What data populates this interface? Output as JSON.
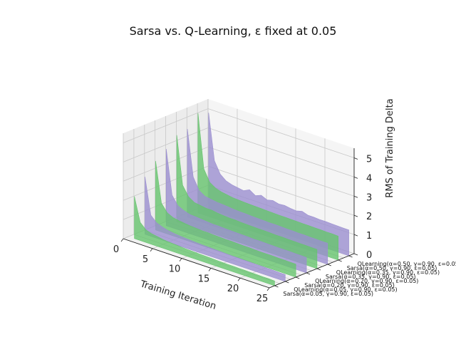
{
  "chart_data": {
    "type": "area",
    "title": "Sarsa vs. Q-Learning, ε fixed at 0.05",
    "xlabel": "Training Iteration",
    "zlabel": "RMS of Training Delta",
    "xlim": [
      0,
      25
    ],
    "zlim": [
      0,
      5.5
    ],
    "x_ticks": [
      "0",
      "5",
      "10",
      "15",
      "20",
      "25"
    ],
    "z_ticks": [
      "0",
      "1",
      "2",
      "3",
      "4",
      "5"
    ],
    "grid": true,
    "colors": {
      "Sarsa": "#66c46e",
      "QLearning": "#9b8fd0"
    },
    "x": [
      1,
      2,
      3,
      4,
      5,
      6,
      7,
      8,
      9,
      10,
      11,
      12,
      13,
      14,
      15,
      16,
      17,
      18,
      19,
      20,
      21,
      22,
      23,
      24,
      25
    ],
    "series": [
      {
        "name": "Sarsa(α=0.05, γ=0.90, ε=0.05)",
        "algo": "Sarsa",
        "values": [
          2.2,
          0.95,
          0.65,
          0.55,
          0.5,
          0.45,
          0.42,
          0.4,
          0.38,
          0.36,
          0.35,
          0.34,
          0.33,
          0.32,
          0.31,
          0.3,
          0.29,
          0.29,
          0.28,
          0.28,
          0.27,
          0.27,
          0.26,
          0.26,
          0.25
        ]
      },
      {
        "name": "QLearning(α=0.05, γ=0.90, ε=0.05)",
        "algo": "QLearning",
        "values": [
          3.0,
          1.1,
          0.8,
          0.68,
          0.6,
          0.55,
          0.52,
          0.5,
          0.48,
          0.46,
          0.45,
          0.44,
          0.43,
          0.42,
          0.41,
          0.4,
          0.4,
          0.39,
          0.39,
          0.38,
          0.38,
          0.37,
          0.37,
          0.36,
          0.36
        ]
      },
      {
        "name": "Sarsa(α=0.20, γ=0.90, ε=0.05)",
        "algo": "Sarsa",
        "values": [
          3.6,
          1.5,
          1.1,
          0.95,
          0.9,
          0.85,
          0.82,
          0.8,
          0.78,
          0.78,
          0.76,
          0.75,
          0.74,
          0.74,
          0.73,
          0.72,
          0.72,
          0.71,
          0.7,
          0.7,
          0.7,
          0.69,
          0.69,
          0.68,
          0.68
        ]
      },
      {
        "name": "QLearning(α=0.20, γ=0.90, ε=0.05)",
        "algo": "QLearning",
        "values": [
          4.0,
          1.7,
          1.25,
          1.1,
          1.0,
          0.98,
          0.95,
          0.92,
          0.9,
          0.9,
          0.88,
          0.87,
          0.86,
          0.86,
          0.85,
          0.84,
          0.84,
          0.83,
          0.83,
          0.82,
          0.82,
          0.82,
          0.81,
          0.81,
          0.8
        ]
      },
      {
        "name": "Sarsa(α=0.35, γ=0.90, ε=0.05)",
        "algo": "Sarsa",
        "values": [
          4.5,
          2.0,
          1.5,
          1.3,
          1.25,
          1.2,
          1.2,
          1.15,
          1.12,
          1.1,
          1.1,
          1.08,
          1.07,
          1.06,
          1.05,
          1.05,
          1.04,
          1.03,
          1.03,
          1.02,
          1.02,
          1.01,
          1.01,
          1.0,
          1.0
        ]
      },
      {
        "name": "QLearning(α=0.35, γ=0.90, ε=0.05)",
        "algo": "QLearning",
        "values": [
          4.6,
          2.2,
          1.6,
          1.4,
          1.35,
          1.3,
          1.28,
          1.25,
          1.22,
          1.2,
          1.2,
          1.18,
          1.17,
          1.16,
          1.15,
          1.15,
          1.14,
          1.13,
          1.13,
          1.12,
          1.12,
          1.11,
          1.11,
          1.1,
          1.1
        ]
      },
      {
        "name": "Sarsa(α=0.50, γ=0.90, ε=0.05)",
        "algo": "Sarsa",
        "values": [
          5.2,
          2.4,
          1.8,
          1.6,
          1.5,
          1.45,
          1.4,
          1.38,
          1.36,
          1.35,
          1.34,
          1.33,
          1.32,
          1.31,
          1.3,
          1.3,
          1.29,
          1.29,
          1.28,
          1.28,
          1.27,
          1.27,
          1.26,
          1.26,
          1.25
        ]
      },
      {
        "name": "QLearning(α=0.50, γ=0.90, ε=0.05",
        "algo": "QLearning",
        "values": [
          5.0,
          2.6,
          2.0,
          1.75,
          1.65,
          1.6,
          1.55,
          1.7,
          1.5,
          1.62,
          1.48,
          1.55,
          1.47,
          1.5,
          1.45,
          1.42,
          1.5,
          1.4,
          1.4,
          1.38,
          1.38,
          1.37,
          1.36,
          1.35,
          1.35
        ]
      }
    ]
  }
}
